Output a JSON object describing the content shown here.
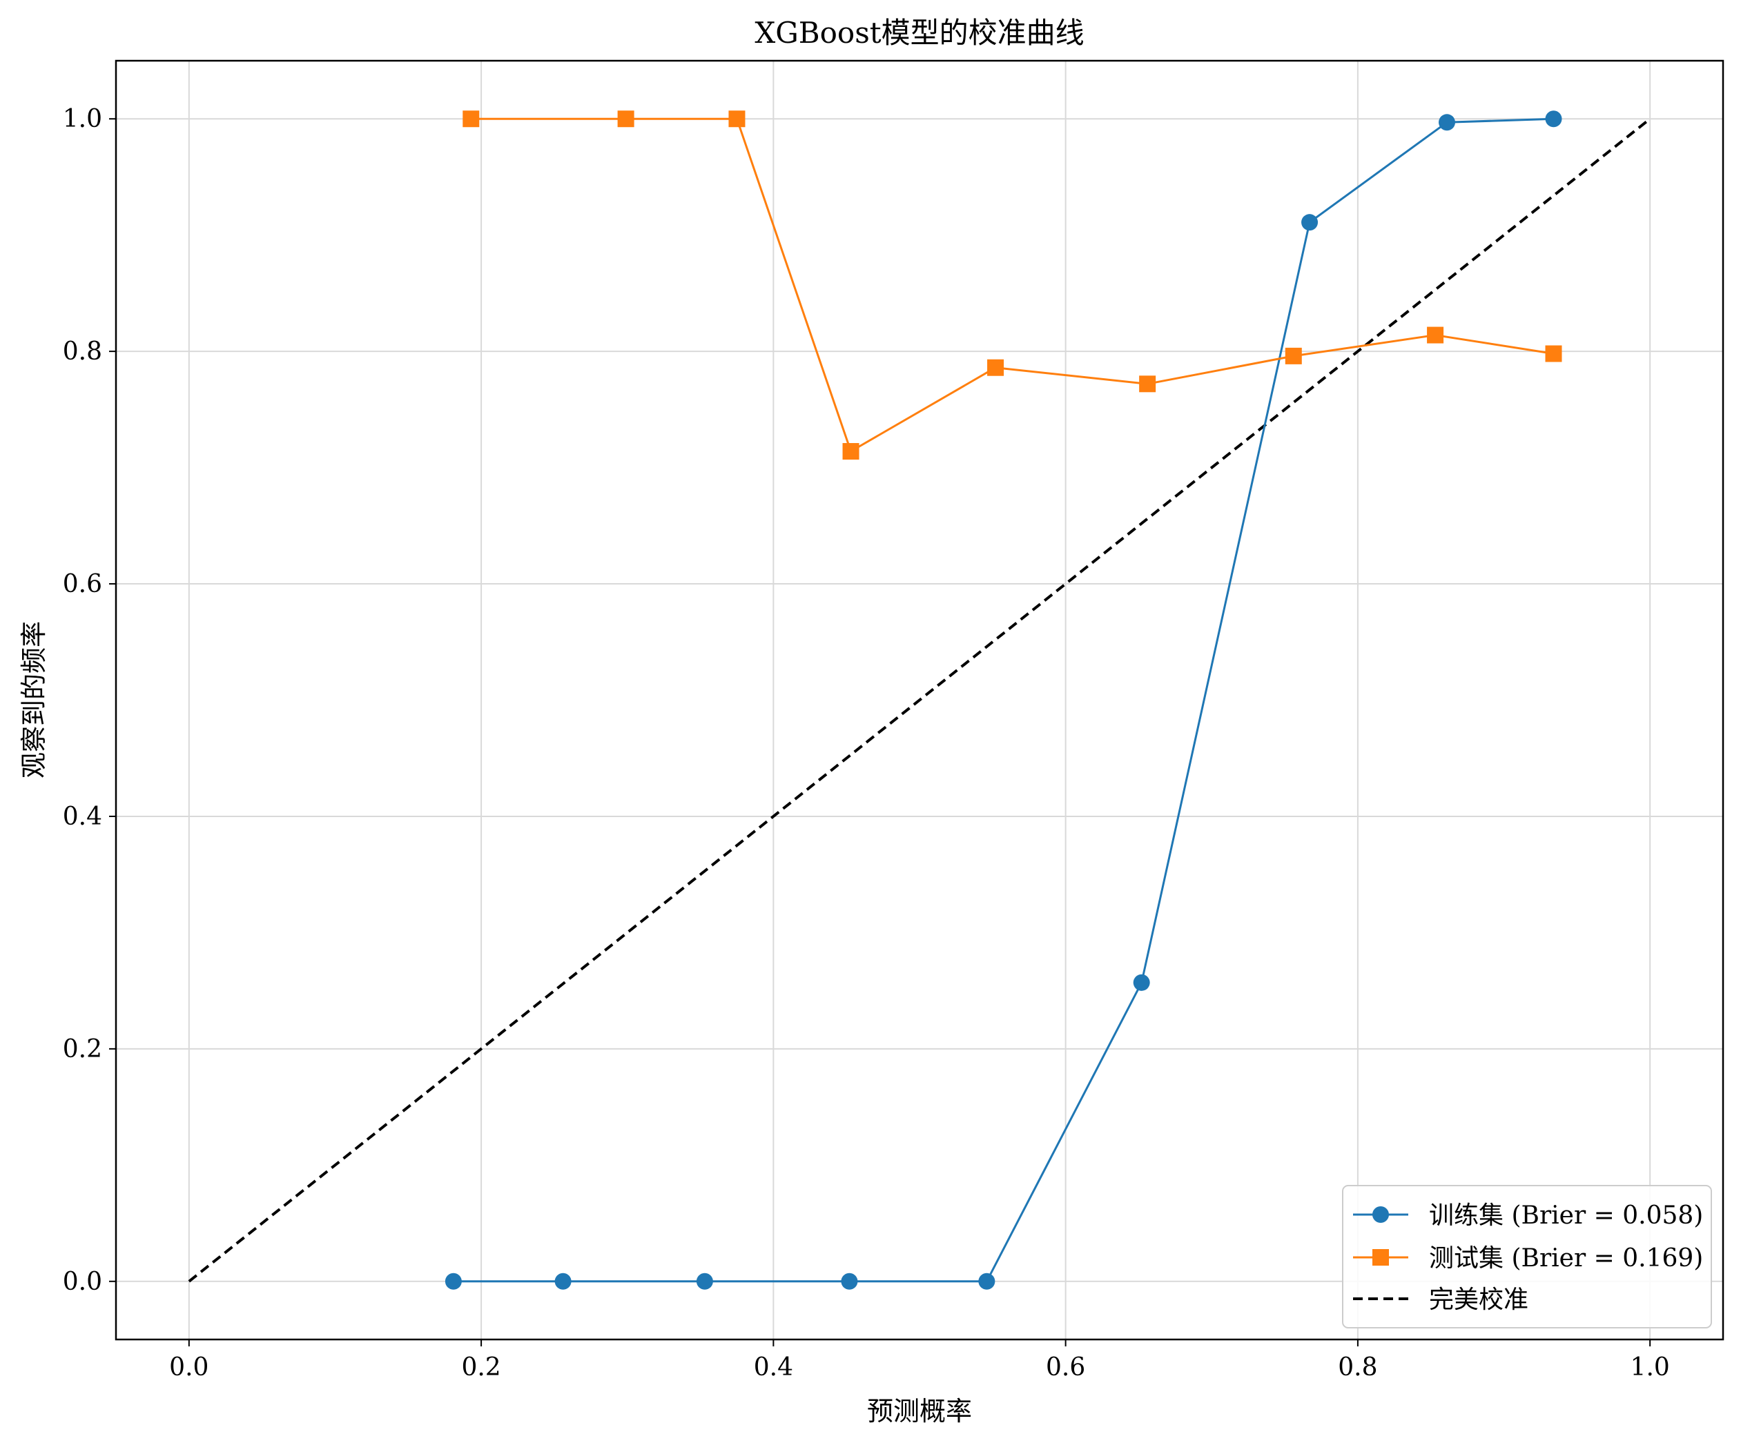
{
  "chart_data": {
    "type": "line",
    "title": "XGBoost模型的校准曲线",
    "xlabel": "预测概率",
    "ylabel": "观察到的频率",
    "xlim": [
      -0.05,
      1.05
    ],
    "ylim": [
      -0.05,
      1.05
    ],
    "xticks": [
      0.0,
      0.2,
      0.4,
      0.6,
      0.8,
      1.0
    ],
    "yticks": [
      0.0,
      0.2,
      0.4,
      0.6,
      0.8,
      1.0
    ],
    "xtick_labels": [
      "0.0",
      "0.2",
      "0.4",
      "0.6",
      "0.8",
      "1.0"
    ],
    "ytick_labels": [
      "0.0",
      "0.2",
      "0.4",
      "0.6",
      "0.8",
      "1.0"
    ],
    "grid": true,
    "legend_position": "bottom-right",
    "series": [
      {
        "name": "训练集 (Brier = 0.058)",
        "marker": "circle",
        "color": "#1f77b4",
        "x": [
          0.181,
          0.256,
          0.353,
          0.452,
          0.546,
          0.652,
          0.767,
          0.861,
          0.934
        ],
        "y": [
          0.0,
          0.0,
          0.0,
          0.0,
          0.0,
          0.257,
          0.911,
          0.997,
          1.0
        ]
      },
      {
        "name": "测试集 (Brier = 0.169)",
        "marker": "square",
        "color": "#ff7f0e",
        "x": [
          0.193,
          0.299,
          0.375,
          0.453,
          0.552,
          0.656,
          0.756,
          0.853,
          0.934
        ],
        "y": [
          1.0,
          1.0,
          1.0,
          0.714,
          0.786,
          0.772,
          0.796,
          0.814,
          0.798
        ]
      }
    ],
    "reference_line": {
      "name": "完美校准",
      "color": "#000000",
      "style": "dashed",
      "x": [
        0.0,
        1.0
      ],
      "y": [
        0.0,
        1.0
      ]
    }
  }
}
